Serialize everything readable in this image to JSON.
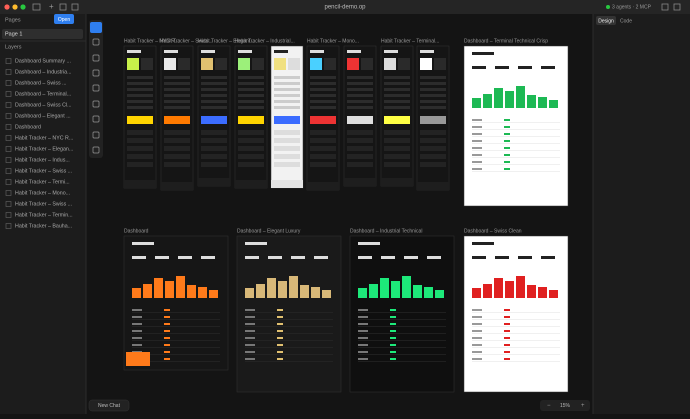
{
  "window": {
    "title": "pencil-demo.op",
    "status": "3 agents · 2 MCP"
  },
  "sidebar": {
    "pages_heading": "Pages",
    "open_button": "Open",
    "pages": [
      "Page 1"
    ],
    "layers_heading": "Layers",
    "layers": [
      "Dashboard Summary ...",
      "Dashboard – Industria...",
      "Dashboard – Swiss ...",
      "Dashboard – Terminal...",
      "Dashboard – Swiss Cl...",
      "Dashboard – Elegant ...",
      "Dashboard",
      "Habit Tracker – NYC R...",
      "Habit Tracker – Elegan...",
      "Habit Tracker – Indus...",
      "Habit Tracker – Swiss ...",
      "Habit Tracker – Termi...",
      "Habit Tracker – Mono...",
      "Habit Tracker – Swiss ...",
      "Habit Tracker – Termin...",
      "Habit Tracker – Bauha..."
    ]
  },
  "right_panel": {
    "tabs": [
      "Design",
      "Code"
    ]
  },
  "canvas": {
    "top_labels": [
      "Habit Tracker – NYC R...",
      "Habit Tracker – Swiss...",
      "Habit Tracker – Elegant...",
      "Habit Tracker – Industrial...",
      "Habit Tracker – Mono...",
      "Habit Tracker – Terminal...",
      "Dashboard – Terminal Technical Crisp"
    ],
    "bottom_labels": [
      "Dashboard",
      "Dashboard – Elegant Luxury",
      "Dashboard – Industrial Technical",
      "Dashboard – Swiss Clean"
    ]
  },
  "footer": {
    "chat_button": "New Chat",
    "zoom": "15%"
  }
}
